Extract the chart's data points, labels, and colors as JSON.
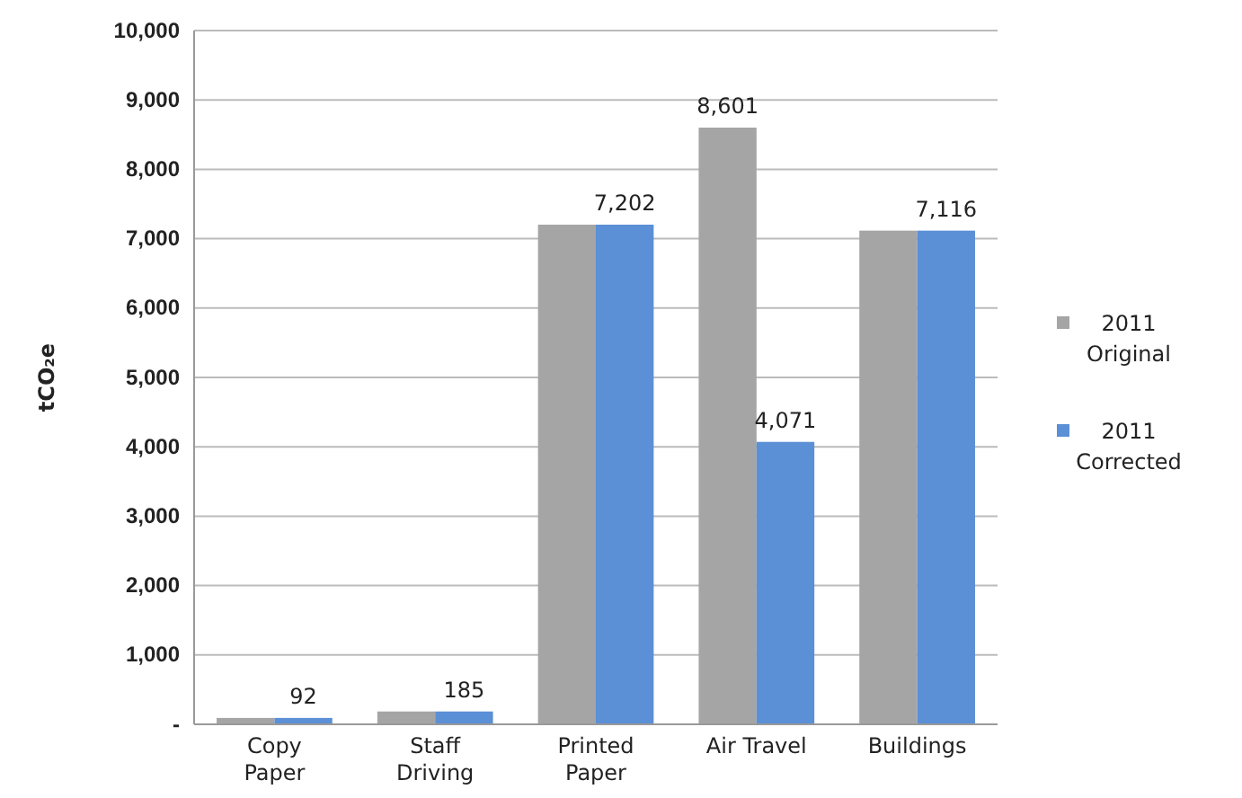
{
  "chart_data": {
    "type": "bar",
    "ylabel": "tCO₂e",
    "categories": [
      "Copy Paper",
      "Staff Driving",
      "Printed Paper",
      "Air Travel",
      "Buildings"
    ],
    "series": [
      {
        "name": "2011 Original",
        "color": "#a5a5a5",
        "values": [
          92,
          185,
          7202,
          8601,
          7116
        ],
        "value_labels": [
          null,
          null,
          null,
          "8,601",
          null
        ]
      },
      {
        "name": "2011 Corrected",
        "color": "#5b8fd6",
        "values": [
          92,
          185,
          7202,
          4071,
          7116
        ],
        "value_labels": [
          "92",
          "185",
          "7,202",
          "4,071",
          "7,116"
        ]
      }
    ],
    "ylim": [
      0,
      10000
    ],
    "yticks": [
      {
        "value": 0,
        "label": "-"
      },
      {
        "value": 1000,
        "label": "1,000"
      },
      {
        "value": 2000,
        "label": "2,000"
      },
      {
        "value": 3000,
        "label": "3,000"
      },
      {
        "value": 4000,
        "label": "4,000"
      },
      {
        "value": 5000,
        "label": "5,000"
      },
      {
        "value": 6000,
        "label": "6,000"
      },
      {
        "value": 7000,
        "label": "7,000"
      },
      {
        "value": 8000,
        "label": "8,000"
      },
      {
        "value": 9000,
        "label": "9,000"
      },
      {
        "value": 10000,
        "label": "10,000"
      }
    ],
    "grid": "y",
    "legend": "right"
  }
}
